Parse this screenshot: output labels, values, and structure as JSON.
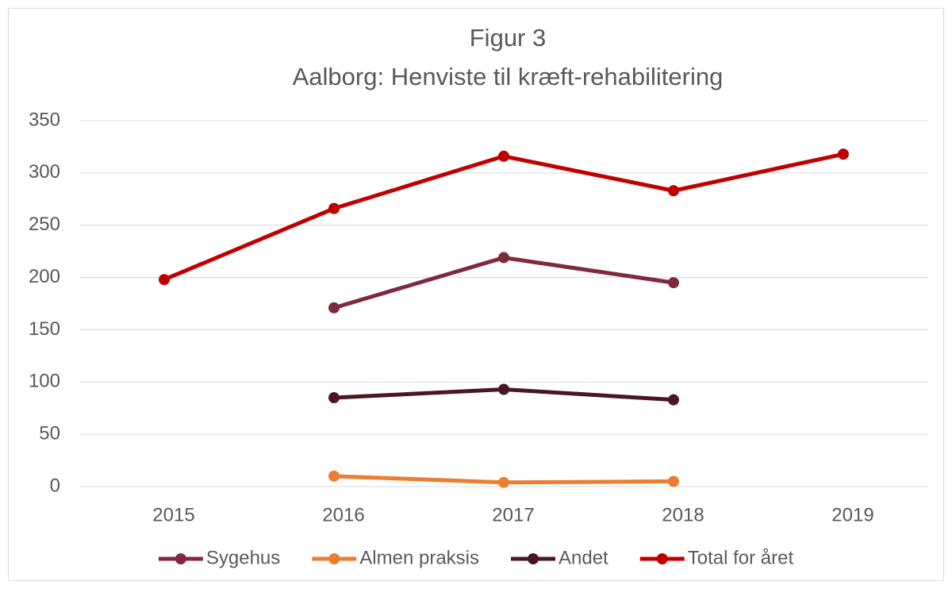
{
  "chart_data": {
    "type": "line",
    "title": [
      "Figur 3",
      "Aalborg: Henviste til kræft-rehabilitering"
    ],
    "categories": [
      "2015",
      "2016",
      "2017",
      "2018",
      "2019"
    ],
    "series": [
      {
        "name": "Sygehus",
        "color": "#7f2a3c",
        "values": [
          null,
          171,
          219,
          195,
          null
        ]
      },
      {
        "name": "Almen praksis",
        "color": "#ed7d31",
        "values": [
          null,
          10,
          4,
          5,
          null
        ]
      },
      {
        "name": "Andet",
        "color": "#4a1623",
        "values": [
          null,
          85,
          93,
          83,
          null
        ]
      },
      {
        "name": "Total for året",
        "color": "#c00000",
        "values": [
          198,
          266,
          316,
          283,
          318
        ]
      }
    ],
    "ylim": [
      0,
      350
    ],
    "yticks": [
      0,
      50,
      100,
      150,
      200,
      250,
      300,
      350
    ],
    "grid": true,
    "legend": "bottom"
  }
}
